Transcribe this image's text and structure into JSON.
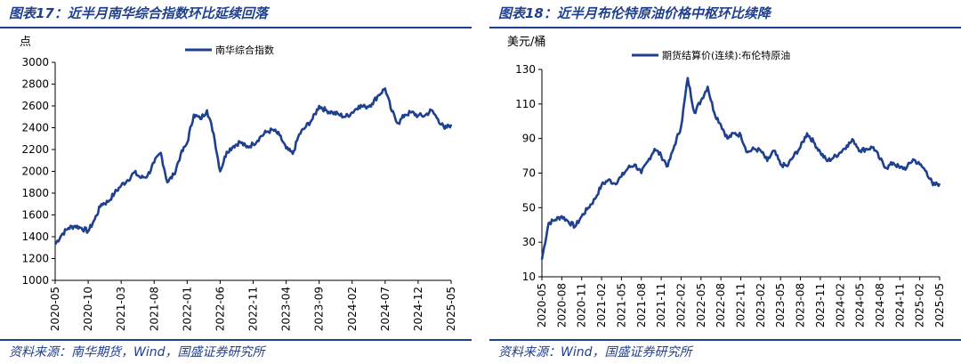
{
  "left": {
    "title": "图表17：近半月南华综合指数环比延续回落",
    "source": "资料来源：南华期货，Wind，国盛证券研究所",
    "chart_data": {
      "type": "line",
      "title": "近半月南华综合指数环比延续回落",
      "ylabel": "点",
      "xlabel": "",
      "ylim": [
        1000,
        3000
      ],
      "yticks": [
        1000,
        1200,
        1400,
        1600,
        1800,
        2000,
        2200,
        2400,
        2600,
        2800,
        3000
      ],
      "xticks": [
        "2020-05",
        "2020-10",
        "2021-03",
        "2021-08",
        "2022-01",
        "2022-06",
        "2022-11",
        "2023-04",
        "2023-09",
        "2024-02",
        "2024-07",
        "2024-12",
        "2025-05"
      ],
      "legend": "top-left",
      "series": [
        {
          "name": "南华综合指数",
          "color": "#1f3f8f",
          "x": [
            "2020-05",
            "2020-06",
            "2020-07",
            "2020-08",
            "2020-09",
            "2020-10",
            "2020-11",
            "2020-12",
            "2021-01",
            "2021-02",
            "2021-03",
            "2021-04",
            "2021-05",
            "2021-06",
            "2021-07",
            "2021-08",
            "2021-09",
            "2021-10",
            "2021-11",
            "2021-12",
            "2022-01",
            "2022-02",
            "2022-03",
            "2022-04",
            "2022-05",
            "2022-06",
            "2022-07",
            "2022-08",
            "2022-09",
            "2022-10",
            "2022-11",
            "2022-12",
            "2023-01",
            "2023-02",
            "2023-03",
            "2023-04",
            "2023-05",
            "2023-06",
            "2023-07",
            "2023-08",
            "2023-09",
            "2023-10",
            "2023-11",
            "2023-12",
            "2024-01",
            "2024-02",
            "2024-03",
            "2024-04",
            "2024-05",
            "2024-06",
            "2024-07",
            "2024-08",
            "2024-09",
            "2024-10",
            "2024-11",
            "2024-12",
            "2025-01",
            "2025-02",
            "2025-03",
            "2025-04",
            "2025-05"
          ],
          "values": [
            1330,
            1420,
            1480,
            1500,
            1480,
            1450,
            1560,
            1700,
            1720,
            1800,
            1870,
            1920,
            1990,
            1940,
            1960,
            2080,
            2170,
            1900,
            1970,
            2150,
            2260,
            2520,
            2480,
            2560,
            2350,
            2000,
            2180,
            2230,
            2270,
            2220,
            2250,
            2310,
            2360,
            2380,
            2330,
            2210,
            2160,
            2340,
            2410,
            2480,
            2600,
            2560,
            2540,
            2520,
            2500,
            2540,
            2600,
            2590,
            2620,
            2700,
            2760,
            2550,
            2440,
            2520,
            2540,
            2510,
            2510,
            2560,
            2480,
            2390,
            2430
          ]
        }
      ]
    }
  },
  "right": {
    "title": "图表18：近半月布伦特原油价格中枢环比续降",
    "source": "资料来源：Wind，国盛证券研究所",
    "chart_data": {
      "type": "line",
      "title": "近半月布伦特原油价格中枢环比续降",
      "ylabel": "美元/桶",
      "xlabel": "",
      "ylim": [
        10,
        130
      ],
      "yticks": [
        10,
        30,
        50,
        70,
        90,
        110,
        130
      ],
      "xticks": [
        "2020-05",
        "2020-08",
        "2020-11",
        "2021-02",
        "2021-05",
        "2021-08",
        "2021-11",
        "2022-02",
        "2022-05",
        "2022-08",
        "2022-11",
        "2023-02",
        "2023-05",
        "2023-08",
        "2023-11",
        "2024-02",
        "2024-05",
        "2024-08",
        "2024-11",
        "2025-02",
        "2025-05"
      ],
      "legend": "top-center",
      "series": [
        {
          "name": "期货结算价(连续):布伦特原油",
          "color": "#1f3f8f",
          "x": [
            "2020-05",
            "2020-06",
            "2020-07",
            "2020-08",
            "2020-09",
            "2020-10",
            "2020-11",
            "2020-12",
            "2021-01",
            "2021-02",
            "2021-03",
            "2021-04",
            "2021-05",
            "2021-06",
            "2021-07",
            "2021-08",
            "2021-09",
            "2021-10",
            "2021-11",
            "2021-12",
            "2022-01",
            "2022-02",
            "2022-03",
            "2022-04",
            "2022-05",
            "2022-06",
            "2022-07",
            "2022-08",
            "2022-09",
            "2022-10",
            "2022-11",
            "2022-12",
            "2023-01",
            "2023-02",
            "2023-03",
            "2023-04",
            "2023-05",
            "2023-06",
            "2023-07",
            "2023-08",
            "2023-09",
            "2023-10",
            "2023-11",
            "2023-12",
            "2024-01",
            "2024-02",
            "2024-03",
            "2024-04",
            "2024-05",
            "2024-06",
            "2024-07",
            "2024-08",
            "2024-09",
            "2024-10",
            "2024-11",
            "2024-12",
            "2025-01",
            "2025-02",
            "2025-03",
            "2025-04",
            "2025-05"
          ],
          "values": [
            20,
            41,
            43,
            45,
            42,
            39,
            45,
            50,
            55,
            63,
            66,
            64,
            68,
            73,
            75,
            70,
            77,
            84,
            80,
            74,
            86,
            97,
            125,
            105,
            112,
            120,
            105,
            98,
            90,
            93,
            92,
            82,
            84,
            83,
            77,
            83,
            75,
            74,
            80,
            85,
            93,
            88,
            82,
            77,
            79,
            82,
            86,
            89,
            83,
            84,
            85,
            78,
            73,
            76,
            73,
            73,
            78,
            75,
            71,
            63,
            64
          ]
        }
      ]
    }
  }
}
